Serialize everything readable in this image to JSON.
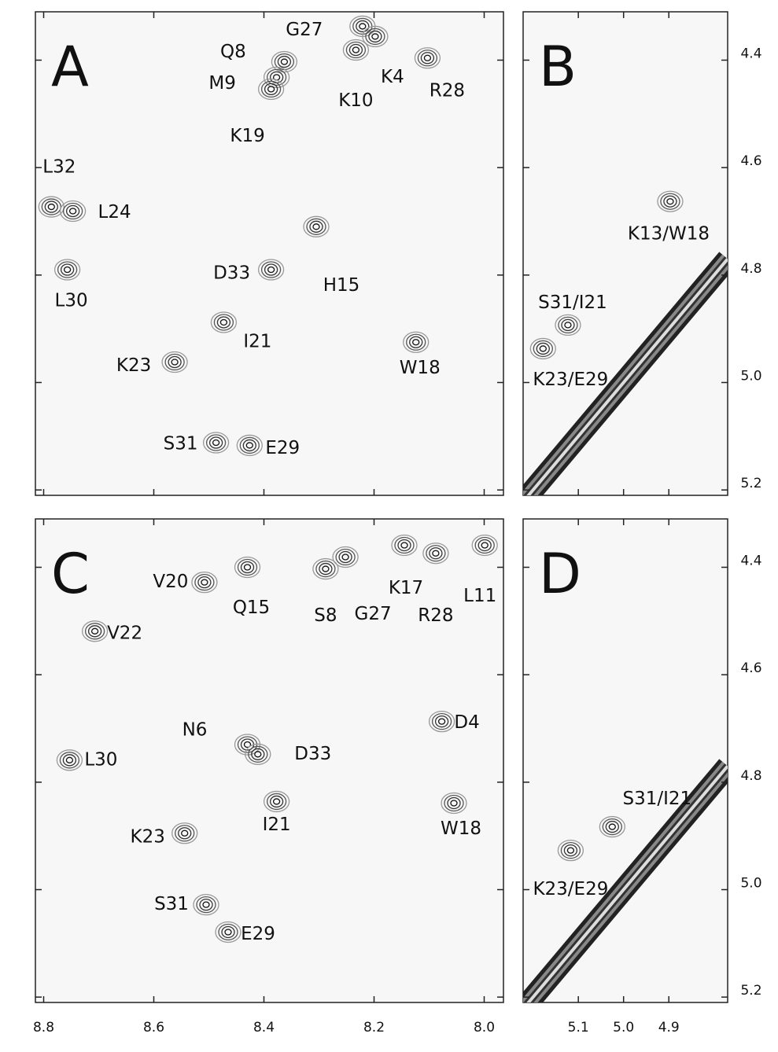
{
  "chart_data": [
    {
      "type": "scatter",
      "title": "A",
      "xlim": [
        8.815,
        7.965
      ],
      "ylim": [
        4.31,
        5.21
      ],
      "labels": [
        "G27",
        "K4",
        "K10",
        "R28",
        "Q8",
        "M9",
        "K19",
        "L32",
        "L24",
        "L30",
        "D33",
        "H15",
        "I21",
        "K23",
        "W18",
        "S31",
        "E29"
      ],
      "x": [
        8.221,
        8.198,
        8.233,
        8.103,
        8.363,
        8.377,
        8.387,
        8.786,
        8.747,
        8.757,
        8.387,
        8.305,
        8.473,
        8.562,
        8.124,
        8.487,
        8.426
      ],
      "y": [
        4.337,
        4.356,
        4.381,
        4.396,
        4.403,
        4.432,
        4.454,
        4.673,
        4.681,
        4.79,
        4.79,
        4.71,
        4.888,
        4.962,
        4.925,
        5.112,
        5.117
      ]
    },
    {
      "type": "scatter",
      "title": "B",
      "xlim": [
        5.222,
        4.77
      ],
      "ylim": [
        4.31,
        5.21
      ],
      "yticks": [
        4.4,
        4.6,
        4.8,
        {
          "value": 5,
          "label": "5.0"
        },
        5.2
      ],
      "labels": [
        "K13/W18",
        "S31/I21",
        "K23/E29"
      ],
      "x": [
        4.897,
        5.123,
        5.178
      ],
      "y": [
        4.663,
        4.893,
        4.937
      ]
    },
    {
      "type": "scatter",
      "title": "C",
      "xlim": [
        8.815,
        7.965
      ],
      "ylim": [
        4.31,
        5.21
      ],
      "xticks": [
        8.8,
        8.6,
        8.4,
        8.2,
        {
          "value": 8,
          "label": "8.0"
        }
      ],
      "labels": [
        "V20",
        "Q15",
        "S8",
        "G27",
        "K17",
        "R28",
        "L11",
        "V22",
        "D4",
        "N6",
        "D33",
        "L30",
        "I21",
        "W18",
        "K23",
        "S31",
        "E29"
      ],
      "x": [
        8.508,
        8.43,
        8.288,
        8.252,
        8.145,
        8.088,
        7.999,
        8.707,
        8.077,
        8.43,
        8.411,
        8.753,
        8.377,
        8.055,
        8.544,
        8.505,
        8.465
      ],
      "y": [
        4.428,
        4.4,
        4.403,
        4.381,
        4.359,
        4.374,
        4.359,
        4.519,
        4.687,
        4.73,
        4.748,
        4.759,
        4.836,
        4.839,
        4.895,
        5.028,
        5.079
      ]
    },
    {
      "type": "scatter",
      "title": "D",
      "xlim": [
        5.222,
        4.77
      ],
      "ylim": [
        4.31,
        5.21
      ],
      "xticks": [
        5.1,
        {
          "value": 5,
          "label": "5.0"
        },
        4.9
      ],
      "yticks": [
        4.4,
        4.6,
        4.8,
        {
          "value": 5,
          "label": "5.0"
        },
        5.2
      ],
      "labels": [
        "S31/I21",
        "K23/E29"
      ],
      "x": [
        5.025,
        5.117
      ],
      "y": [
        4.883,
        4.927
      ]
    }
  ]
}
